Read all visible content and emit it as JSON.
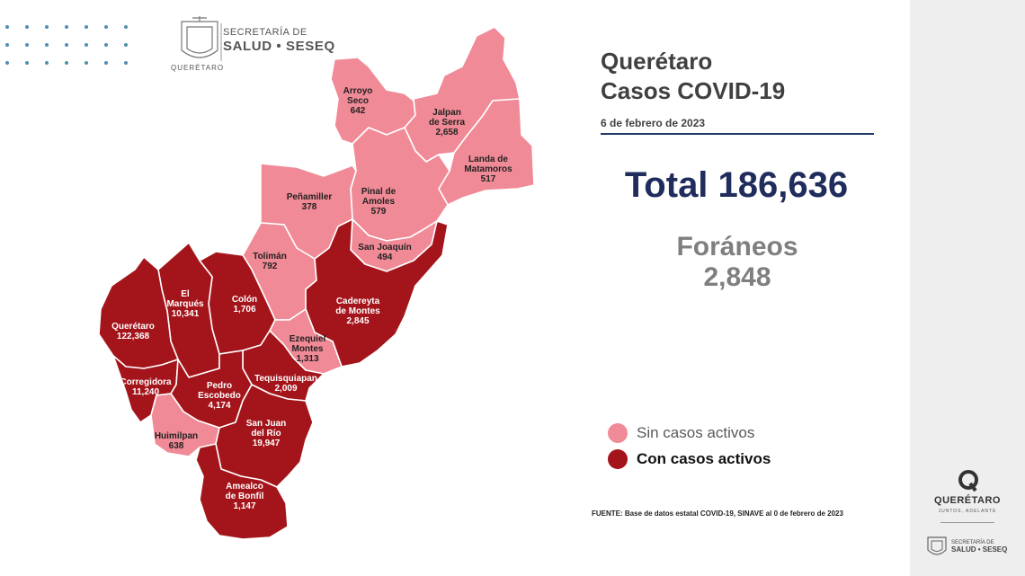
{
  "header": {
    "secretaria_line1": "SECRETARÍA DE",
    "secretaria_line2": "SALUD • SESEQ",
    "state": "QUERÉTARO"
  },
  "title": {
    "line1": "Querétaro",
    "line2": "Casos COVID-19"
  },
  "date": "6 de febrero de 2023",
  "total": {
    "label": "Total",
    "value": "186,636"
  },
  "foraneos": {
    "label": "Foráneos",
    "value": "2,848"
  },
  "legend": [
    {
      "label": "Sin casos activos",
      "color": "#f08a96"
    },
    {
      "label": "Con casos activos",
      "color": "#a3151b"
    }
  ],
  "colors": {
    "sin_casos": "#f08a96",
    "con_casos": "#a3151b",
    "border": "#ffffff",
    "total_text": "#1f2c5c"
  },
  "municipalities": [
    {
      "name": "Arroyo Seco",
      "name_lines": [
        "Arroyo",
        "Seco"
      ],
      "cases": "642",
      "status": "sin"
    },
    {
      "name": "Jalpan de Serra",
      "name_lines": [
        "Jalpan",
        "de Serra"
      ],
      "cases": "2,658",
      "status": "sin"
    },
    {
      "name": "Landa de Matamoros",
      "name_lines": [
        "Landa de",
        "Matamoros"
      ],
      "cases": "517",
      "status": "sin"
    },
    {
      "name": "Pinal de Amoles",
      "name_lines": [
        "Pinal de",
        "Amoles"
      ],
      "cases": "579",
      "status": "sin"
    },
    {
      "name": "Peñamiller",
      "name_lines": [
        "Peñamiller"
      ],
      "cases": "378",
      "status": "sin"
    },
    {
      "name": "San Joaquín",
      "name_lines": [
        "San Joaquín"
      ],
      "cases": "494",
      "status": "sin"
    },
    {
      "name": "Tolimán",
      "name_lines": [
        "Tolimán"
      ],
      "cases": "792",
      "status": "sin"
    },
    {
      "name": "Cadereyta de Montes",
      "name_lines": [
        "Cadereyta",
        "de Montes"
      ],
      "cases": "2,845",
      "status": "con"
    },
    {
      "name": "Colón",
      "name_lines": [
        "Colón"
      ],
      "cases": "1,706",
      "status": "con"
    },
    {
      "name": "El Marqués",
      "name_lines": [
        "El",
        "Marqués"
      ],
      "cases": "10,341",
      "status": "con"
    },
    {
      "name": "Querétaro",
      "name_lines": [
        "Querétaro"
      ],
      "cases": "122,368",
      "status": "con"
    },
    {
      "name": "Ezequiel Montes",
      "name_lines": [
        "Ezequiel",
        "Montes"
      ],
      "cases": "1,313",
      "status": "sin"
    },
    {
      "name": "Tequisquiapan",
      "name_lines": [
        "Tequisquiapan"
      ],
      "cases": "2,009",
      "status": "con"
    },
    {
      "name": "Corregidora",
      "name_lines": [
        "Corregidora"
      ],
      "cases": "11,240",
      "status": "con"
    },
    {
      "name": "Pedro Escobedo",
      "name_lines": [
        "Pedro",
        "Escobedo"
      ],
      "cases": "4,174",
      "status": "con"
    },
    {
      "name": "Huimilpan",
      "name_lines": [
        "Huimilpan"
      ],
      "cases": "638",
      "status": "sin"
    },
    {
      "name": "San Juan del Río",
      "name_lines": [
        "San Juan",
        "del Río"
      ],
      "cases": "19,947",
      "status": "con"
    },
    {
      "name": "Amealco de Bonfil",
      "name_lines": [
        "Amealco",
        "de Bonfil"
      ],
      "cases": "1,147",
      "status": "con"
    }
  ],
  "source": "FUENTE: Base de datos estatal  COVID-19,  SINAVE  al 0 de febrero de 2023",
  "side": {
    "brand": "QUERÉTARO",
    "brand_sub": "JUNTOS, ADELANTE",
    "sec_line1": "SECRETARÍA DE",
    "sec_line2": "SALUD • SESEQ"
  }
}
